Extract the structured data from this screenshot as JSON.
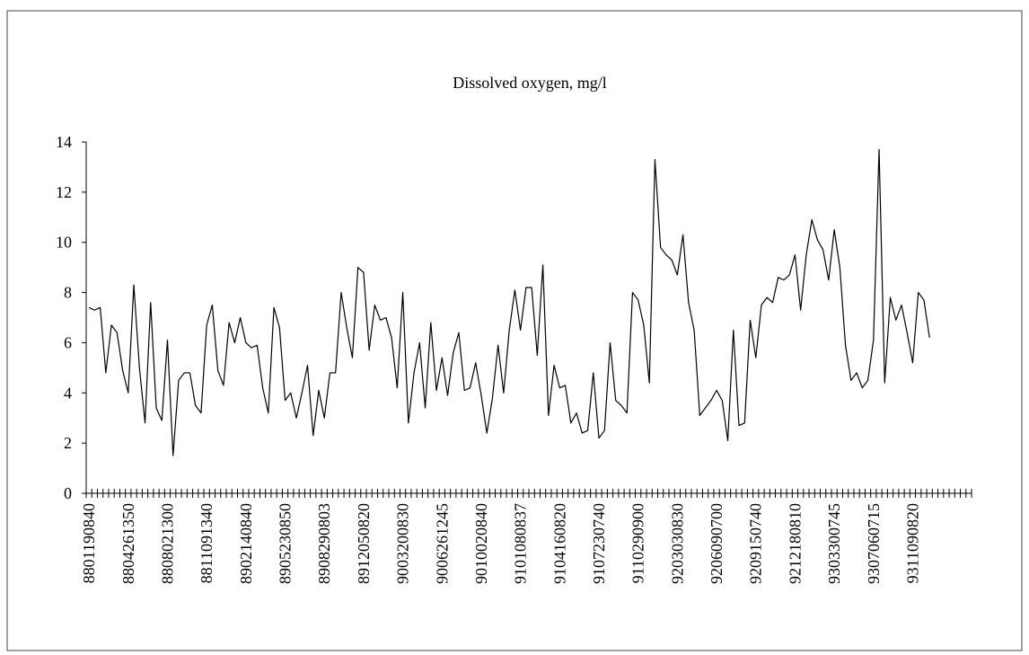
{
  "chart_data": {
    "type": "line",
    "title": "Dissolved oxygen, mg/l",
    "categories": [
      "8801190840",
      null,
      null,
      null,
      null,
      null,
      null,
      "8804261350",
      null,
      null,
      null,
      null,
      null,
      null,
      "8808021300",
      null,
      null,
      null,
      null,
      null,
      null,
      "8811091340",
      null,
      null,
      null,
      null,
      null,
      null,
      "8902140840",
      null,
      null,
      null,
      null,
      null,
      null,
      "8905230850",
      null,
      null,
      null,
      null,
      null,
      null,
      "8908290803",
      null,
      null,
      null,
      null,
      null,
      null,
      "8912050820",
      null,
      null,
      null,
      null,
      null,
      null,
      "9003200830",
      null,
      null,
      null,
      null,
      null,
      null,
      "9006261245",
      null,
      null,
      null,
      null,
      null,
      null,
      "9010020840",
      null,
      null,
      null,
      null,
      null,
      null,
      "9101080837",
      null,
      null,
      null,
      null,
      null,
      null,
      "9104160820",
      null,
      null,
      null,
      null,
      null,
      null,
      "9107230740",
      null,
      null,
      null,
      null,
      null,
      null,
      "9110290900",
      null,
      null,
      null,
      null,
      null,
      null,
      "9203030830",
      null,
      null,
      null,
      null,
      null,
      null,
      "9206090700",
      null,
      null,
      null,
      null,
      null,
      null,
      "9209150740",
      null,
      null,
      null,
      null,
      null,
      null,
      "9212180810",
      null,
      null,
      null,
      null,
      null,
      null,
      "9303300745",
      null,
      null,
      null,
      null,
      null,
      null,
      "9307060715",
      null,
      null,
      null,
      null,
      null,
      null,
      "9311090820",
      null,
      null,
      null,
      null,
      null,
      null,
      null,
      null,
      null,
      null
    ],
    "values": [
      7.4,
      7.3,
      7.4,
      4.8,
      6.7,
      6.4,
      4.9,
      4.0,
      8.3,
      5.0,
      2.8,
      7.6,
      3.4,
      2.9,
      6.1,
      1.5,
      4.5,
      4.8,
      4.8,
      3.5,
      3.2,
      6.7,
      7.5,
      4.9,
      4.3,
      6.8,
      6.0,
      7.0,
      6.0,
      5.8,
      5.9,
      4.2,
      3.2,
      7.4,
      6.6,
      3.7,
      4.0,
      3.0,
      4.0,
      5.1,
      2.3,
      4.1,
      3.0,
      4.8,
      4.8,
      8.0,
      6.6,
      5.4,
      9.0,
      8.8,
      5.7,
      7.5,
      6.9,
      7.0,
      6.2,
      4.2,
      8.0,
      2.8,
      4.8,
      6.0,
      3.4,
      6.8,
      4.1,
      5.4,
      3.9,
      5.6,
      6.4,
      4.1,
      4.2,
      5.2,
      3.9,
      2.4,
      3.8,
      5.9,
      4.0,
      6.5,
      8.1,
      6.5,
      8.2,
      8.2,
      5.5,
      9.1,
      3.1,
      5.1,
      4.2,
      4.3,
      2.8,
      3.2,
      2.4,
      2.5,
      4.8,
      2.2,
      2.5,
      6.0,
      3.7,
      3.5,
      3.2,
      8.0,
      7.7,
      6.7,
      4.4,
      13.3,
      9.8,
      9.5,
      9.3,
      8.7,
      10.3,
      7.6,
      6.5,
      3.1,
      3.4,
      3.7,
      4.1,
      3.7,
      2.1,
      6.5,
      2.7,
      2.8,
      6.9,
      5.4,
      7.5,
      7.8,
      7.6,
      8.6,
      8.5,
      8.7,
      9.5,
      7.3,
      9.5,
      10.9,
      10.1,
      9.7,
      8.5,
      10.5,
      9.0,
      5.9,
      4.5,
      4.8,
      4.2,
      4.5,
      6.1,
      13.7,
      4.4,
      7.8,
      6.9,
      7.5,
      6.4,
      5.2,
      8.0,
      7.7,
      6.2,
      null,
      null,
      null,
      null,
      null,
      null,
      null
    ],
    "color": "#000000",
    "ylim": [
      0,
      14
    ],
    "yticks": [
      0,
      2,
      4,
      6,
      8,
      10,
      12,
      14
    ]
  }
}
